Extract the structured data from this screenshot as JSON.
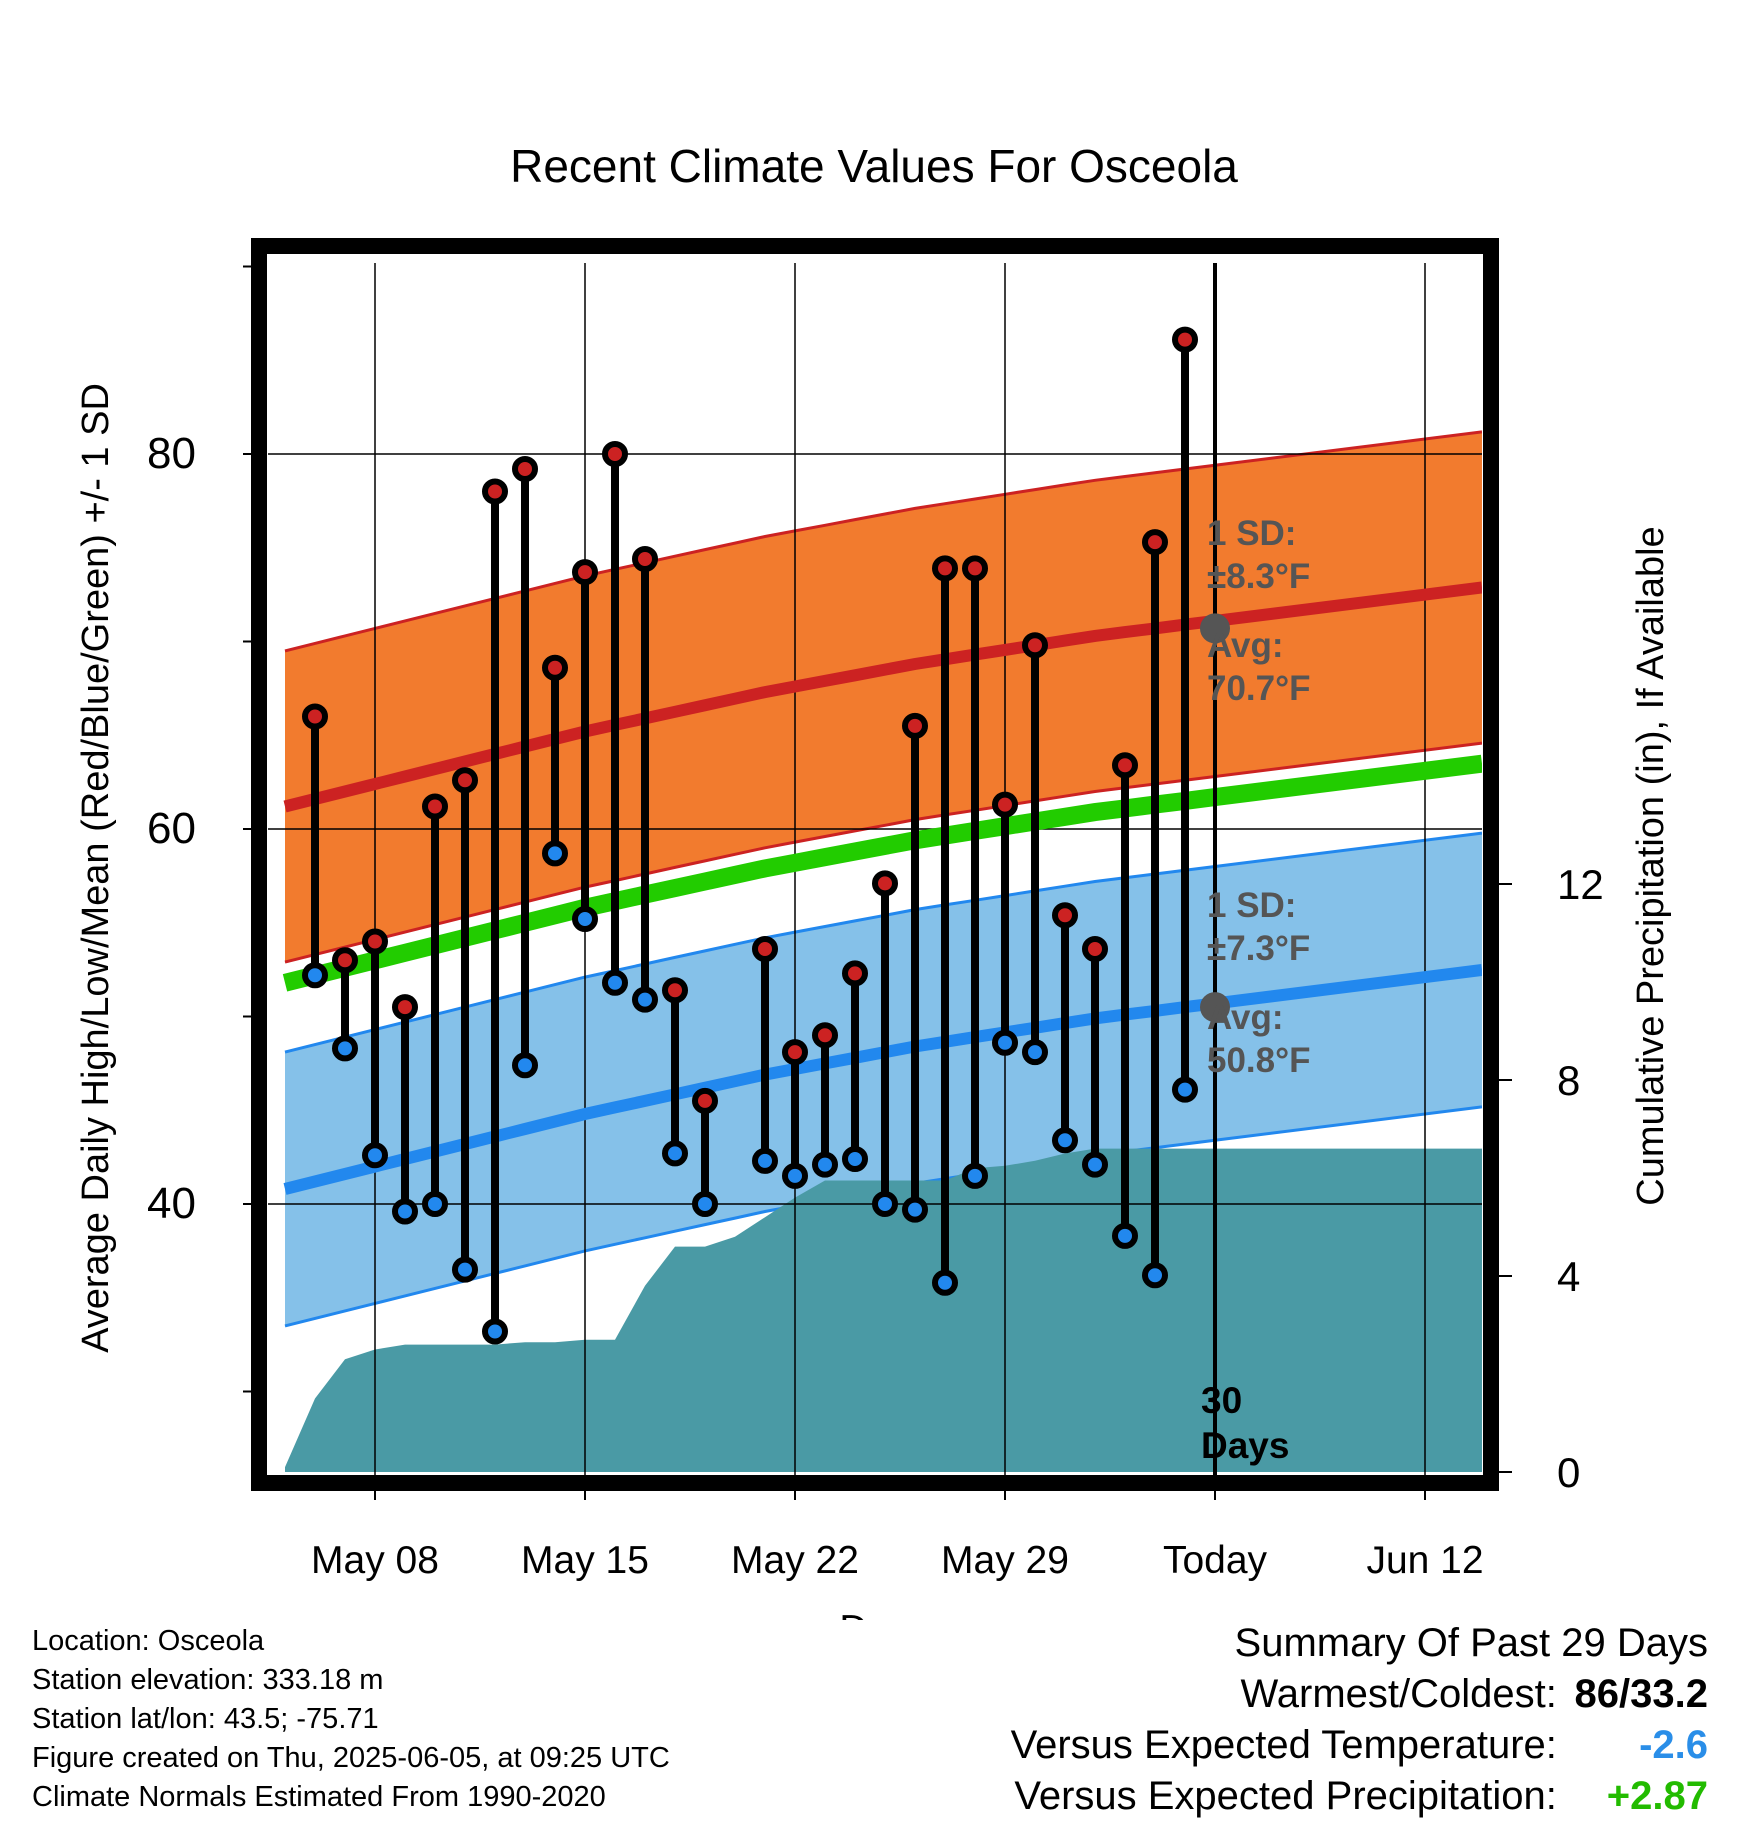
{
  "chart_data": {
    "type": "line",
    "title": "Recent Climate Values For Osceola",
    "xlabel": "Day",
    "ylabel": "Average Daily High/Low/Mean (Red/Blue/Green) +/- 1 SD",
    "y2label": "Cumulative Precipitation (in), If Available",
    "ylim": [
      30,
      90
    ],
    "y2lim": [
      0,
      16
    ],
    "x_tick_labels": [
      "May 08",
      "May 15",
      "May 22",
      "May 29",
      "Today",
      "Jun 12"
    ],
    "y_ticks": [
      40,
      60,
      80
    ],
    "y2_ticks": [
      0,
      4,
      8,
      12
    ],
    "grid": true,
    "today_label": "30\nDays",
    "days": [
      "May 05",
      "May 06",
      "May 07",
      "May 08",
      "May 09",
      "May 10",
      "May 11",
      "May 12",
      "May 13",
      "May 14",
      "May 15",
      "May 16",
      "May 17",
      "May 18",
      "May 19",
      "May 20",
      "May 21",
      "May 22",
      "May 23",
      "May 24",
      "May 25",
      "May 26",
      "May 27",
      "May 28",
      "May 29",
      "May 30",
      "May 31",
      "Jun 01",
      "Jun 02",
      "Jun 03",
      "Jun 04",
      "Jun 05"
    ],
    "series": [
      {
        "name": "High",
        "color": "#cc2222",
        "values": [
          null,
          66,
          53,
          54,
          50.5,
          61.2,
          62.6,
          78,
          79.2,
          68.6,
          73.7,
          80,
          74.4,
          51.4,
          45.5,
          null,
          53.6,
          48.1,
          49,
          52.3,
          57.1,
          65.5,
          73.9,
          73.9,
          61.3,
          69.8,
          55.4,
          53.6,
          63.4,
          75.3,
          86.1,
          null
        ]
      },
      {
        "name": "Low",
        "color": "#2288ee",
        "values": [
          null,
          52.2,
          48.3,
          42.6,
          39.6,
          40,
          36.5,
          33.2,
          47.4,
          58.7,
          55.2,
          51.8,
          50.9,
          42.7,
          40,
          null,
          42.3,
          41.5,
          42.1,
          42.4,
          40,
          39.7,
          35.8,
          41.5,
          48.6,
          48.1,
          43.4,
          42.1,
          38.3,
          36.2,
          46.1,
          null
        ]
      },
      {
        "name": "Normal High",
        "color": "#cc2222",
        "sd": 8.3,
        "values": [
          61.2,
          61.6,
          62.0,
          62.4,
          62.8,
          63.2,
          63.6,
          64.0,
          64.4,
          64.8,
          65.2,
          65.55,
          65.9,
          66.25,
          66.6,
          66.95,
          67.3,
          67.6,
          67.9,
          68.2,
          68.5,
          68.8,
          69.05,
          69.3,
          69.55,
          69.8,
          70.05,
          70.3,
          70.5,
          70.7,
          70.9,
          71.1
        ]
      },
      {
        "name": "Normal Mean",
        "color": "#22cc00",
        "values": [
          51.8,
          52.2,
          52.6,
          53.0,
          53.4,
          53.8,
          54.2,
          54.6,
          55.0,
          55.4,
          55.8,
          56.15,
          56.5,
          56.85,
          57.2,
          57.55,
          57.9,
          58.2,
          58.5,
          58.8,
          59.1,
          59.4,
          59.65,
          59.9,
          60.15,
          60.4,
          60.65,
          60.9,
          61.1,
          61.3,
          61.5,
          61.7
        ]
      },
      {
        "name": "Normal Low",
        "color": "#2288ee",
        "sd": 7.3,
        "values": [
          40.8,
          41.2,
          41.6,
          42.0,
          42.4,
          42.8,
          43.2,
          43.6,
          44.0,
          44.4,
          44.8,
          45.15,
          45.5,
          45.85,
          46.2,
          46.55,
          46.9,
          47.2,
          47.5,
          47.8,
          48.1,
          48.4,
          48.65,
          48.9,
          49.15,
          49.4,
          49.65,
          49.9,
          50.1,
          50.3,
          50.5,
          50.7
        ]
      },
      {
        "name": "Cumulative Precipitation",
        "color": "#4a9aa5",
        "values": [
          0.1,
          1.5,
          2.3,
          2.5,
          2.6,
          2.6,
          2.6,
          2.6,
          2.65,
          2.65,
          2.7,
          2.7,
          3.8,
          4.6,
          4.6,
          4.8,
          5.2,
          5.6,
          5.95,
          5.95,
          5.95,
          5.95,
          5.95,
          6.2,
          6.25,
          6.35,
          6.5,
          6.6,
          6.6,
          6.6,
          6.6,
          6.6
        ]
      }
    ],
    "annotations": {
      "high_sd": "1 SD:",
      "high_sd_value": "±8.3°F",
      "high_avg": "Avg:",
      "high_avg_value": "70.7°F",
      "low_sd": "1 SD:",
      "low_sd_value": "±7.3°F",
      "low_avg": "Avg:",
      "low_avg_value": "50.8°F"
    }
  },
  "footer": {
    "location": "Location: Osceola",
    "elevation": "Station elevation: 333.18 m",
    "latlon": "Station lat/lon: 43.5; -75.71",
    "created": "Figure created on Thu, 2025-06-05, at 09:25 UTC",
    "normals": "Climate Normals Estimated From 1990-2020"
  },
  "summary": {
    "heading": "Summary Of Past 29 Days",
    "warm_cold_label": "Warmest/Coldest:",
    "warm_cold_value": "86/33.2",
    "temp_label": "Versus Expected Temperature:",
    "temp_value": "-2.6",
    "temp_color": "#2a8ee8",
    "precip_label": "Versus Expected Precipitation:",
    "precip_value": "+2.87",
    "precip_color": "#22bb00"
  }
}
